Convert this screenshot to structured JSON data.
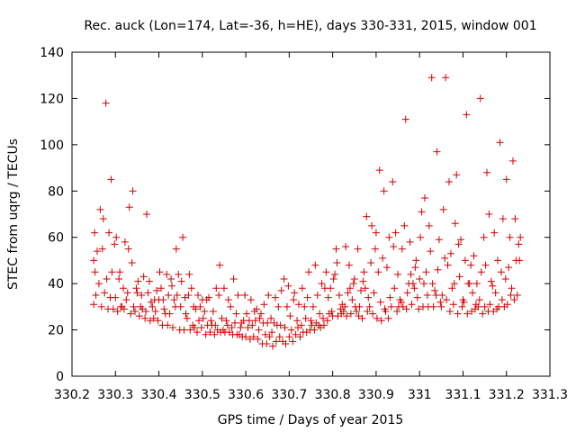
{
  "chart_data": {
    "type": "scatter",
    "title": "Rec. auck (Lon=174, Lat=-36, h=HE), days 330-331, 2015, window 001",
    "xlabel": "GPS time / Days of year 2015",
    "ylabel": "STEC from uqrg / TECUs",
    "xlim": [
      330.2,
      331.3
    ],
    "ylim": [
      0,
      140
    ],
    "xticks": [
      330.2,
      330.3,
      330.4,
      330.5,
      330.6,
      330.7,
      330.8,
      330.9,
      331,
      331.1,
      331.2,
      331.3
    ],
    "xtick_labels": [
      "330.2",
      "330.3",
      "330.4",
      "330.5",
      "330.6",
      "330.7",
      "330.8",
      "330.9",
      "331",
      "331.1",
      "331.2",
      "331.3"
    ],
    "yticks": [
      0,
      20,
      40,
      60,
      80,
      100,
      120,
      140
    ],
    "ytick_labels": [
      "0",
      "20",
      "40",
      "60",
      "80",
      "100",
      "120",
      "140"
    ],
    "grid": false,
    "marker": "plus",
    "color": "#d40000",
    "series": [
      {
        "x": [
          330.25,
          330.25,
          330.252,
          330.253,
          330.255,
          330.258,
          330.262,
          330.265,
          330.268,
          330.27,
          330.272,
          330.275,
          330.278,
          330.28,
          330.283,
          330.285,
          330.288,
          330.29,
          330.292,
          330.295,
          330.298,
          330.3,
          330.302,
          330.305,
          330.308,
          330.31,
          330.312,
          330.315,
          330.318,
          330.32,
          330.322,
          330.325,
          330.328,
          330.33,
          330.332,
          330.335,
          330.338,
          330.34,
          330.342,
          330.345,
          330.348,
          330.35,
          330.352,
          330.355,
          330.358,
          330.36,
          330.362,
          330.365,
          330.368,
          330.37,
          330.372,
          330.375,
          330.378,
          330.38,
          330.382,
          330.385,
          330.388,
          330.39,
          330.392,
          330.395,
          330.398,
          330.4,
          330.402,
          330.405,
          330.408,
          330.41,
          330.412,
          330.415,
          330.418,
          330.42,
          330.422,
          330.425,
          330.428,
          330.43,
          330.432,
          330.435,
          330.438,
          330.44,
          330.442,
          330.445,
          330.448,
          330.45,
          330.452,
          330.455,
          330.458,
          330.46,
          330.462,
          330.465,
          330.468,
          330.47,
          330.472,
          330.475,
          330.478,
          330.48,
          330.482,
          330.485,
          330.488,
          330.49,
          330.492,
          330.495,
          330.498,
          330.5,
          330.502,
          330.505,
          330.508,
          330.51,
          330.512,
          330.515,
          330.518,
          330.52,
          330.522,
          330.525,
          330.528,
          330.53,
          330.532,
          330.535,
          330.538,
          330.54,
          330.542,
          330.545,
          330.548,
          330.55,
          330.552,
          330.555,
          330.558,
          330.56,
          330.562,
          330.565,
          330.568,
          330.57,
          330.572,
          330.575,
          330.578,
          330.58,
          330.582,
          330.585,
          330.588,
          330.59,
          330.592,
          330.595,
          330.598,
          330.6,
          330.602,
          330.605,
          330.608,
          330.61,
          330.612,
          330.615,
          330.618,
          330.62,
          330.622,
          330.625,
          330.628,
          330.63,
          330.632,
          330.635,
          330.638,
          330.64,
          330.642,
          330.645,
          330.648,
          330.65,
          330.652,
          330.655,
          330.658,
          330.66,
          330.662,
          330.665,
          330.668,
          330.67,
          330.672,
          330.675,
          330.678,
          330.68,
          330.682,
          330.685,
          330.688,
          330.69,
          330.692,
          330.695,
          330.698,
          330.7,
          330.702,
          330.705,
          330.708,
          330.71,
          330.712,
          330.715,
          330.718,
          330.72,
          330.722,
          330.725,
          330.728,
          330.73,
          330.732,
          330.735,
          330.738,
          330.74,
          330.742,
          330.745,
          330.748,
          330.75,
          330.752,
          330.755,
          330.758,
          330.76,
          330.762,
          330.765,
          330.768,
          330.77,
          330.772,
          330.775,
          330.778,
          330.78,
          330.782,
          330.785,
          330.788,
          330.79,
          330.792,
          330.795,
          330.798,
          330.8,
          330.802,
          330.805,
          330.808,
          330.81,
          330.812,
          330.815,
          330.818,
          330.82,
          330.822,
          330.825,
          330.828,
          330.83,
          330.832,
          330.835,
          330.838,
          330.84,
          330.842,
          330.845,
          330.848,
          330.85,
          330.852,
          330.855,
          330.858,
          330.86,
          330.862,
          330.865,
          330.868,
          330.87,
          330.872,
          330.875,
          330.878,
          330.88,
          330.882,
          330.885,
          330.888,
          330.89,
          330.892,
          330.895,
          330.898,
          330.9,
          330.902,
          330.905,
          330.908,
          330.91,
          330.912,
          330.915,
          330.918,
          330.92,
          330.922,
          330.925,
          330.928,
          330.93,
          330.932,
          330.935,
          330.938,
          330.94,
          330.942,
          330.945,
          330.948,
          330.95,
          330.952,
          330.955,
          330.958,
          330.96,
          330.962,
          330.965,
          330.968,
          330.97,
          330.972,
          330.975,
          330.978,
          330.98,
          330.982,
          330.985,
          330.988,
          330.99,
          330.992,
          330.995,
          330.998,
          331.0,
          331.002,
          331.005,
          331.008,
          331.01,
          331.012,
          331.015,
          331.018,
          331.02,
          331.022,
          331.025,
          331.028,
          331.03,
          331.032,
          331.035,
          331.038,
          331.04,
          331.042,
          331.045,
          331.048,
          331.05,
          331.052,
          331.055,
          331.058,
          331.06,
          331.062,
          331.065,
          331.068,
          331.07,
          331.072,
          331.075,
          331.078,
          331.08,
          331.082,
          331.085,
          331.088,
          331.09,
          331.092,
          331.095,
          331.098,
          331.1,
          331.102,
          331.105,
          331.108,
          331.11,
          331.112,
          331.115,
          331.118,
          331.12,
          331.122,
          331.125,
          331.128,
          331.13,
          331.132,
          331.135,
          331.138,
          331.14,
          331.142,
          331.145,
          331.148,
          331.15,
          331.152,
          331.155,
          331.158,
          331.16,
          331.162,
          331.165,
          331.168,
          331.17,
          331.172,
          331.175,
          331.178,
          331.18,
          331.182,
          331.185,
          331.188,
          331.19,
          331.192,
          331.195,
          331.198,
          331.2,
          331.202,
          331.205,
          331.208,
          331.21,
          331.212,
          331.215,
          331.218,
          331.22,
          331.222,
          331.225,
          331.228,
          331.23,
          331.232
        ],
        "y": [
          31,
          50,
          62,
          45,
          35,
          54,
          40,
          72,
          30,
          55,
          68,
          36,
          118,
          42,
          29,
          62,
          34,
          85,
          45,
          29,
          57,
          34,
          60,
          28,
          42,
          45,
          30,
          30,
          38,
          29,
          58,
          33,
          36,
          55,
          73,
          27,
          49,
          80,
          30,
          28,
          38,
          36,
          41,
          26,
          30,
          35,
          29,
          43,
          25,
          28,
          70,
          36,
          41,
          24,
          32,
          30,
          25,
          33,
          28,
          37,
          24,
          33,
          45,
          38,
          22,
          33,
          29,
          27,
          44,
          22,
          35,
          27,
          42,
          39,
          21,
          33,
          30,
          55,
          35,
          44,
          20,
          30,
          41,
          60,
          20,
          34,
          27,
          25,
          35,
          44,
          20,
          38,
          22,
          30,
          21,
          29,
          19,
          35,
          24,
          30,
          21,
          33,
          25,
          28,
          18,
          33,
          22,
          34,
          19,
          24,
          22,
          28,
          18,
          22,
          38,
          20,
          35,
          48,
          19,
          25,
          20,
          38,
          19,
          24,
          22,
          33,
          19,
          30,
          21,
          18,
          42,
          23,
          27,
          18,
          35,
          18,
          21,
          23,
          17,
          24,
          35,
          17,
          27,
          21,
          24,
          16,
          33,
          22,
          17,
          28,
          24,
          29,
          16,
          20,
          25,
          27,
          14,
          23,
          31,
          18,
          14,
          23,
          35,
          17,
          25,
          19,
          13,
          23,
          34,
          15,
          22,
          30,
          17,
          22,
          37,
          15,
          42,
          21,
          14,
          30,
          39,
          17,
          26,
          20,
          15,
          33,
          36,
          18,
          24,
          21,
          31,
          17,
          22,
          38,
          19,
          30,
          25,
          19,
          34,
          45,
          20,
          24,
          22,
          30,
          20,
          48,
          23,
          35,
          22,
          27,
          21,
          40,
          25,
          22,
          38,
          45,
          24,
          34,
          27,
          38,
          28,
          26,
          42,
          44,
          55,
          49,
          26,
          35,
          29,
          27,
          31,
          28,
          30,
          56,
          26,
          36,
          48,
          38,
          27,
          33,
          40,
          42,
          30,
          28,
          55,
          26,
          30,
          37,
          25,
          41,
          45,
          38,
          69,
          28,
          34,
          30,
          49,
          65,
          27,
          36,
          55,
          62,
          25,
          45,
          89,
          32,
          24,
          51,
          80,
          29,
          28,
          47,
          25,
          60,
          34,
          30,
          84,
          56,
          38,
          62,
          28,
          44,
          30,
          33,
          32,
          55,
          30,
          65,
          111,
          29,
          36,
          40,
          58,
          44,
          31,
          40,
          38,
          47,
          50,
          34,
          29,
          42,
          60,
          71,
          30,
          40,
          77,
          45,
          35,
          30,
          65,
          54,
          129,
          40,
          30,
          37,
          35,
          97,
          46,
          59,
          32,
          30,
          35,
          72,
          51,
          129,
          33,
          48,
          84,
          28,
          53,
          38,
          31,
          40,
          66,
          87,
          27,
          57,
          43,
          59,
          30,
          33,
          32,
          50,
          113,
          27,
          40,
          40,
          48,
          28,
          36,
          52,
          29,
          31,
          40,
          30,
          33,
          120,
          45,
          27,
          60,
          30,
          48,
          88,
          28,
          70,
          31,
          41,
          39,
          28,
          62,
          36,
          29,
          50,
          30,
          101,
          45,
          33,
          68,
          30,
          42,
          85,
          31,
          47,
          60,
          35,
          38,
          93,
          33,
          68,
          50,
          35,
          57,
          50,
          60
        ]
      }
    ]
  }
}
